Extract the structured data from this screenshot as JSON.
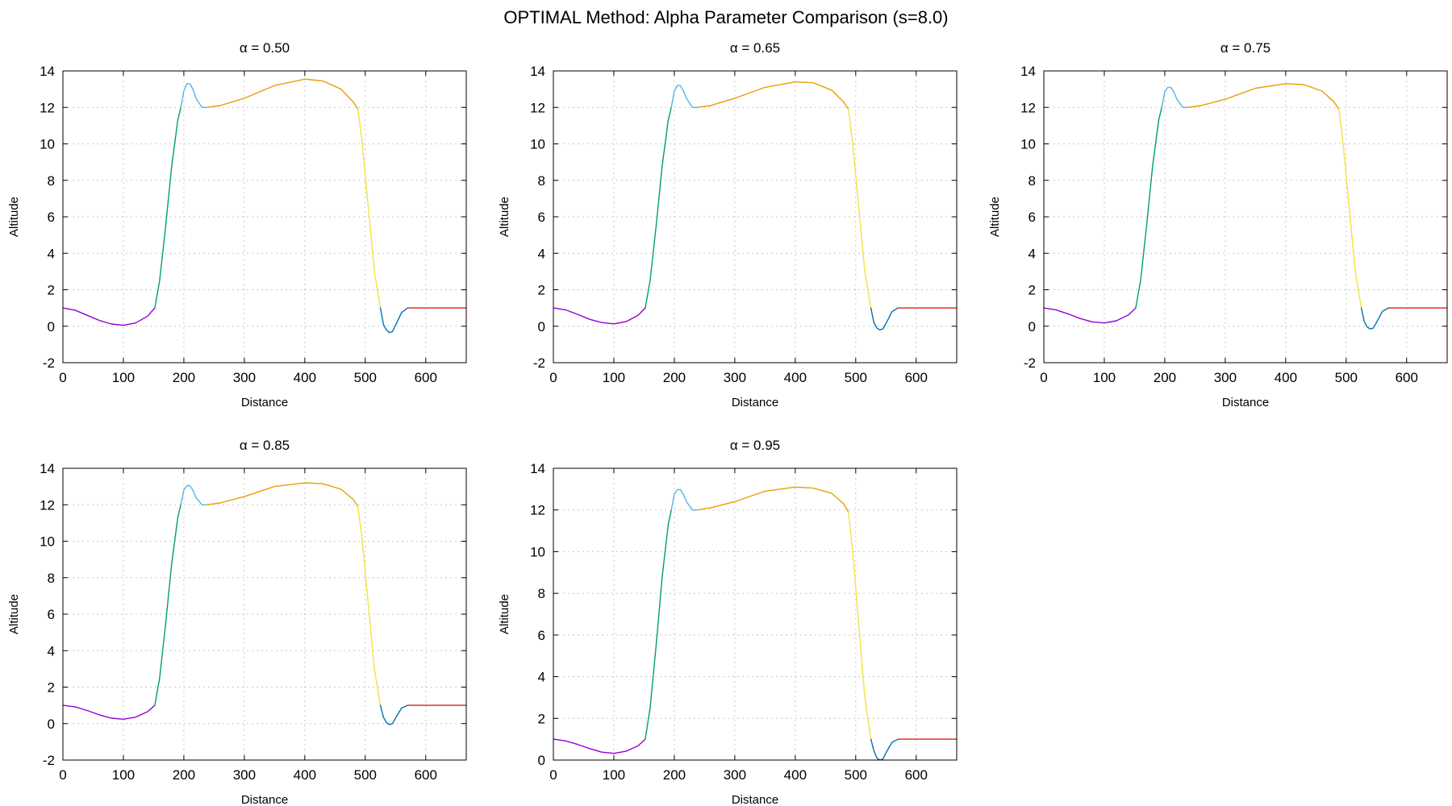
{
  "figure": {
    "title": "OPTIMAL Method: Alpha Parameter Comparison (s=8.0)"
  },
  "segment_colors": {
    "purple": "#9400d3",
    "green": "#009e73",
    "cyan": "#56b4e9",
    "orange": "#e69f00",
    "yellow": "#f0e442",
    "blue": "#0072b2",
    "red": "#e51e10"
  },
  "chart_data": [
    {
      "type": "line",
      "title": "α = 0.50",
      "xlabel": "Distance",
      "ylabel": "Altitude",
      "xlim": [
        0,
        667
      ],
      "ylim": [
        -2,
        14
      ],
      "xticks": [
        0,
        100,
        200,
        300,
        400,
        500,
        600
      ],
      "yticks": [
        -2,
        0,
        2,
        4,
        6,
        8,
        10,
        12,
        14
      ],
      "grid": true,
      "series": [
        {
          "color": "purple",
          "x": [
            0,
            20,
            40,
            60,
            80,
            100,
            120,
            140,
            152
          ],
          "y": [
            1.0,
            0.88,
            0.6,
            0.32,
            0.12,
            0.05,
            0.18,
            0.55,
            1.0
          ]
        },
        {
          "color": "green",
          "x": [
            152,
            160,
            170,
            180,
            190,
            195
          ],
          "y": [
            1.0,
            2.5,
            5.5,
            8.8,
            11.3,
            12.0
          ]
        },
        {
          "color": "cyan",
          "x": [
            195,
            200,
            205,
            210,
            215,
            220,
            230,
            238
          ],
          "y": [
            12.0,
            12.9,
            13.3,
            13.3,
            13.0,
            12.5,
            12.0,
            12.0
          ]
        },
        {
          "color": "orange",
          "x": [
            238,
            260,
            300,
            350,
            400,
            430,
            460,
            480,
            488
          ],
          "y": [
            12.0,
            12.1,
            12.5,
            13.2,
            13.55,
            13.45,
            13.0,
            12.3,
            11.9
          ]
        },
        {
          "color": "yellow",
          "x": [
            488,
            495,
            505,
            515,
            525
          ],
          "y": [
            11.9,
            10.0,
            6.5,
            3.0,
            1.0
          ]
        },
        {
          "color": "blue",
          "x": [
            525,
            530,
            535,
            540,
            545,
            550,
            560,
            570
          ],
          "y": [
            1.0,
            0.1,
            -0.2,
            -0.35,
            -0.3,
            0.05,
            0.75,
            1.0
          ]
        },
        {
          "color": "red",
          "x": [
            570,
            600,
            630,
            667
          ],
          "y": [
            1.0,
            1.0,
            1.0,
            1.0
          ]
        }
      ]
    },
    {
      "type": "line",
      "title": "α = 0.65",
      "xlabel": "Distance",
      "ylabel": "Altitude",
      "xlim": [
        0,
        667
      ],
      "ylim": [
        -2,
        14
      ],
      "xticks": [
        0,
        100,
        200,
        300,
        400,
        500,
        600
      ],
      "yticks": [
        -2,
        0,
        2,
        4,
        6,
        8,
        10,
        12,
        14
      ],
      "grid": true,
      "series": [
        {
          "color": "purple",
          "x": [
            0,
            20,
            40,
            60,
            80,
            100,
            120,
            140,
            152
          ],
          "y": [
            1.0,
            0.9,
            0.65,
            0.38,
            0.2,
            0.13,
            0.25,
            0.6,
            1.0
          ]
        },
        {
          "color": "green",
          "x": [
            152,
            160,
            170,
            180,
            190,
            195
          ],
          "y": [
            1.0,
            2.5,
            5.5,
            8.8,
            11.3,
            12.0
          ]
        },
        {
          "color": "cyan",
          "x": [
            195,
            200,
            205,
            210,
            215,
            220,
            230,
            238
          ],
          "y": [
            12.0,
            12.9,
            13.2,
            13.2,
            12.9,
            12.5,
            12.0,
            12.0
          ]
        },
        {
          "color": "orange",
          "x": [
            238,
            260,
            300,
            350,
            400,
            430,
            460,
            480,
            488
          ],
          "y": [
            12.0,
            12.1,
            12.5,
            13.1,
            13.4,
            13.35,
            12.95,
            12.3,
            11.9
          ]
        },
        {
          "color": "yellow",
          "x": [
            488,
            495,
            505,
            515,
            525
          ],
          "y": [
            11.9,
            10.0,
            6.5,
            3.0,
            1.0
          ]
        },
        {
          "color": "blue",
          "x": [
            525,
            530,
            535,
            540,
            545,
            550,
            560,
            570
          ],
          "y": [
            1.0,
            0.2,
            -0.1,
            -0.2,
            -0.15,
            0.15,
            0.8,
            1.0
          ]
        },
        {
          "color": "red",
          "x": [
            570,
            600,
            630,
            667
          ],
          "y": [
            1.0,
            1.0,
            1.0,
            1.0
          ]
        }
      ]
    },
    {
      "type": "line",
      "title": "α = 0.75",
      "xlabel": "Distance",
      "ylabel": "Altitude",
      "xlim": [
        0,
        667
      ],
      "ylim": [
        -2,
        14
      ],
      "xticks": [
        0,
        100,
        200,
        300,
        400,
        500,
        600
      ],
      "yticks": [
        -2,
        0,
        2,
        4,
        6,
        8,
        10,
        12,
        14
      ],
      "grid": true,
      "series": [
        {
          "color": "purple",
          "x": [
            0,
            20,
            40,
            60,
            80,
            100,
            120,
            140,
            152
          ],
          "y": [
            1.0,
            0.9,
            0.68,
            0.42,
            0.24,
            0.18,
            0.3,
            0.62,
            1.0
          ]
        },
        {
          "color": "green",
          "x": [
            152,
            160,
            170,
            180,
            190,
            195
          ],
          "y": [
            1.0,
            2.5,
            5.5,
            8.8,
            11.3,
            12.0
          ]
        },
        {
          "color": "cyan",
          "x": [
            195,
            200,
            205,
            210,
            215,
            220,
            230,
            238
          ],
          "y": [
            12.0,
            12.85,
            13.1,
            13.1,
            12.85,
            12.45,
            12.0,
            12.0
          ]
        },
        {
          "color": "orange",
          "x": [
            238,
            260,
            300,
            350,
            400,
            430,
            460,
            480,
            488
          ],
          "y": [
            12.0,
            12.1,
            12.45,
            13.05,
            13.3,
            13.25,
            12.9,
            12.3,
            11.9
          ]
        },
        {
          "color": "yellow",
          "x": [
            488,
            495,
            505,
            515,
            525
          ],
          "y": [
            11.9,
            10.0,
            6.5,
            3.0,
            1.0
          ]
        },
        {
          "color": "blue",
          "x": [
            525,
            530,
            535,
            540,
            545,
            550,
            560,
            570
          ],
          "y": [
            1.0,
            0.25,
            -0.05,
            -0.15,
            -0.1,
            0.2,
            0.82,
            1.0
          ]
        },
        {
          "color": "red",
          "x": [
            570,
            600,
            630,
            667
          ],
          "y": [
            1.0,
            1.0,
            1.0,
            1.0
          ]
        }
      ]
    },
    {
      "type": "line",
      "title": "α = 0.85",
      "xlabel": "Distance",
      "ylabel": "Altitude",
      "xlim": [
        0,
        667
      ],
      "ylim": [
        -2,
        14
      ],
      "xticks": [
        0,
        100,
        200,
        300,
        400,
        500,
        600
      ],
      "yticks": [
        -2,
        0,
        2,
        4,
        6,
        8,
        10,
        12,
        14
      ],
      "grid": true,
      "series": [
        {
          "color": "purple",
          "x": [
            0,
            20,
            40,
            60,
            80,
            100,
            120,
            140,
            152
          ],
          "y": [
            1.0,
            0.92,
            0.72,
            0.48,
            0.3,
            0.24,
            0.35,
            0.65,
            1.0
          ]
        },
        {
          "color": "green",
          "x": [
            152,
            160,
            170,
            180,
            190,
            195
          ],
          "y": [
            1.0,
            2.5,
            5.5,
            8.8,
            11.3,
            12.0
          ]
        },
        {
          "color": "cyan",
          "x": [
            195,
            200,
            205,
            210,
            215,
            220,
            230,
            238
          ],
          "y": [
            12.0,
            12.8,
            13.05,
            13.05,
            12.8,
            12.4,
            12.0,
            12.0
          ]
        },
        {
          "color": "orange",
          "x": [
            238,
            260,
            300,
            350,
            400,
            430,
            460,
            480,
            488
          ],
          "y": [
            12.0,
            12.1,
            12.45,
            13.0,
            13.2,
            13.15,
            12.85,
            12.3,
            11.9
          ]
        },
        {
          "color": "yellow",
          "x": [
            488,
            495,
            505,
            515,
            525
          ],
          "y": [
            11.9,
            10.0,
            6.5,
            3.0,
            1.0
          ]
        },
        {
          "color": "blue",
          "x": [
            525,
            530,
            535,
            540,
            545,
            550,
            560,
            570
          ],
          "y": [
            1.0,
            0.35,
            0.05,
            -0.05,
            0.0,
            0.3,
            0.85,
            1.0
          ]
        },
        {
          "color": "red",
          "x": [
            570,
            600,
            630,
            667
          ],
          "y": [
            1.0,
            1.0,
            1.0,
            1.0
          ]
        }
      ]
    },
    {
      "type": "line",
      "title": "α = 0.95",
      "xlabel": "Distance",
      "ylabel": "Altitude",
      "xlim": [
        0,
        667
      ],
      "ylim": [
        0,
        14
      ],
      "xticks": [
        0,
        100,
        200,
        300,
        400,
        500,
        600
      ],
      "yticks": [
        0,
        2,
        4,
        6,
        8,
        10,
        12,
        14
      ],
      "grid": true,
      "series": [
        {
          "color": "purple",
          "x": [
            0,
            20,
            40,
            60,
            80,
            100,
            120,
            140,
            152
          ],
          "y": [
            1.0,
            0.92,
            0.75,
            0.55,
            0.38,
            0.32,
            0.42,
            0.68,
            1.0
          ]
        },
        {
          "color": "green",
          "x": [
            152,
            160,
            170,
            180,
            190,
            195
          ],
          "y": [
            1.0,
            2.5,
            5.5,
            8.8,
            11.3,
            12.0
          ]
        },
        {
          "color": "cyan",
          "x": [
            195,
            200,
            205,
            210,
            215,
            220,
            230,
            238
          ],
          "y": [
            12.0,
            12.75,
            12.98,
            12.98,
            12.75,
            12.4,
            12.0,
            12.0
          ]
        },
        {
          "color": "orange",
          "x": [
            238,
            260,
            300,
            350,
            400,
            430,
            460,
            480,
            488
          ],
          "y": [
            12.0,
            12.1,
            12.4,
            12.9,
            13.1,
            13.05,
            12.8,
            12.3,
            11.9
          ]
        },
        {
          "color": "yellow",
          "x": [
            488,
            495,
            505,
            515,
            525
          ],
          "y": [
            11.9,
            10.0,
            6.5,
            3.0,
            1.0
          ]
        },
        {
          "color": "blue",
          "x": [
            525,
            530,
            535,
            540,
            545,
            550,
            560,
            570
          ],
          "y": [
            1.0,
            0.45,
            0.1,
            0.0,
            0.05,
            0.35,
            0.85,
            1.0
          ]
        },
        {
          "color": "red",
          "x": [
            570,
            600,
            630,
            667
          ],
          "y": [
            1.0,
            1.0,
            1.0,
            1.0
          ]
        }
      ]
    }
  ]
}
